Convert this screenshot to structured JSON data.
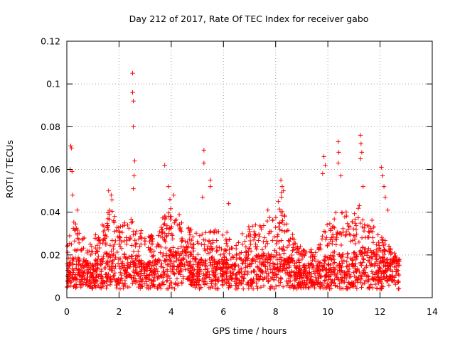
{
  "chart_data": {
    "type": "scatter",
    "title": "Day 212 of 2017, Rate Of TEC Index for receiver gabo",
    "xlabel": "GPS time / hours",
    "ylabel": "ROTI / TECUs",
    "xlim": [
      0,
      14
    ],
    "ylim": [
      0,
      0.12
    ],
    "x_ticks": [
      0,
      2,
      4,
      6,
      8,
      10,
      12,
      14
    ],
    "x_tick_labels": [
      "0",
      "2",
      "4",
      "6",
      "8",
      "10",
      "12",
      "14"
    ],
    "y_ticks": [
      0,
      0.02,
      0.04,
      0.06,
      0.08,
      0.1,
      0.12
    ],
    "y_tick_labels": [
      "0",
      "0.02",
      "0.04",
      "0.06",
      "0.08",
      "0.1",
      "0.12"
    ],
    "grid": true,
    "legend": "none",
    "marker": "+",
    "color": "#ff0000",
    "x_data_range": [
      0,
      12.75
    ],
    "density_profile": {
      "x": [
        0,
        0.2,
        0.5,
        1.0,
        1.5,
        1.7,
        2.0,
        2.5,
        3.0,
        3.5,
        3.8,
        4.0,
        4.5,
        5.0,
        5.5,
        6.0,
        6.5,
        7.0,
        7.5,
        8.0,
        8.25,
        8.5,
        9.0,
        9.5,
        10.0,
        10.5,
        11.0,
        11.25,
        11.5,
        12.0,
        12.5,
        12.75
      ],
      "y_mid": [
        0.012,
        0.014,
        0.012,
        0.011,
        0.014,
        0.015,
        0.012,
        0.014,
        0.011,
        0.012,
        0.014,
        0.016,
        0.016,
        0.012,
        0.013,
        0.012,
        0.012,
        0.013,
        0.014,
        0.014,
        0.016,
        0.013,
        0.01,
        0.01,
        0.013,
        0.014,
        0.015,
        0.016,
        0.016,
        0.013,
        0.012,
        0.012
      ],
      "y_upper": [
        0.025,
        0.04,
        0.03,
        0.026,
        0.038,
        0.045,
        0.032,
        0.038,
        0.028,
        0.03,
        0.04,
        0.045,
        0.034,
        0.03,
        0.032,
        0.03,
        0.028,
        0.032,
        0.035,
        0.038,
        0.048,
        0.032,
        0.022,
        0.022,
        0.035,
        0.04,
        0.038,
        0.045,
        0.038,
        0.03,
        0.022,
        0.018
      ]
    },
    "notable_points": [
      {
        "x": 0.15,
        "y": 0.071
      },
      {
        "x": 0.18,
        "y": 0.07
      },
      {
        "x": 0.13,
        "y": 0.06
      },
      {
        "x": 0.2,
        "y": 0.059
      },
      {
        "x": 0.22,
        "y": 0.048
      },
      {
        "x": 2.52,
        "y": 0.105
      },
      {
        "x": 2.52,
        "y": 0.096
      },
      {
        "x": 2.55,
        "y": 0.092
      },
      {
        "x": 2.55,
        "y": 0.08
      },
      {
        "x": 2.6,
        "y": 0.064
      },
      {
        "x": 2.58,
        "y": 0.057
      },
      {
        "x": 2.55,
        "y": 0.051
      },
      {
        "x": 1.6,
        "y": 0.05
      },
      {
        "x": 1.7,
        "y": 0.048
      },
      {
        "x": 3.75,
        "y": 0.062
      },
      {
        "x": 3.9,
        "y": 0.052
      },
      {
        "x": 3.95,
        "y": 0.046
      },
      {
        "x": 5.25,
        "y": 0.069
      },
      {
        "x": 5.25,
        "y": 0.063
      },
      {
        "x": 5.5,
        "y": 0.055
      },
      {
        "x": 5.5,
        "y": 0.052
      },
      {
        "x": 5.2,
        "y": 0.047
      },
      {
        "x": 8.2,
        "y": 0.055
      },
      {
        "x": 8.25,
        "y": 0.052
      },
      {
        "x": 8.3,
        "y": 0.05
      },
      {
        "x": 8.1,
        "y": 0.045
      },
      {
        "x": 9.85,
        "y": 0.066
      },
      {
        "x": 9.9,
        "y": 0.062
      },
      {
        "x": 9.8,
        "y": 0.058
      },
      {
        "x": 10.4,
        "y": 0.073
      },
      {
        "x": 10.42,
        "y": 0.068
      },
      {
        "x": 10.4,
        "y": 0.063
      },
      {
        "x": 10.5,
        "y": 0.057
      },
      {
        "x": 11.25,
        "y": 0.076
      },
      {
        "x": 11.27,
        "y": 0.072
      },
      {
        "x": 11.3,
        "y": 0.068
      },
      {
        "x": 11.25,
        "y": 0.065
      },
      {
        "x": 11.35,
        "y": 0.052
      },
      {
        "x": 12.05,
        "y": 0.061
      },
      {
        "x": 12.1,
        "y": 0.057
      },
      {
        "x": 12.15,
        "y": 0.052
      },
      {
        "x": 12.2,
        "y": 0.047
      },
      {
        "x": 12.3,
        "y": 0.041
      },
      {
        "x": 0.4,
        "y": 0.041
      },
      {
        "x": 4.1,
        "y": 0.048
      },
      {
        "x": 6.2,
        "y": 0.044
      },
      {
        "x": 7.7,
        "y": 0.041
      }
    ]
  }
}
